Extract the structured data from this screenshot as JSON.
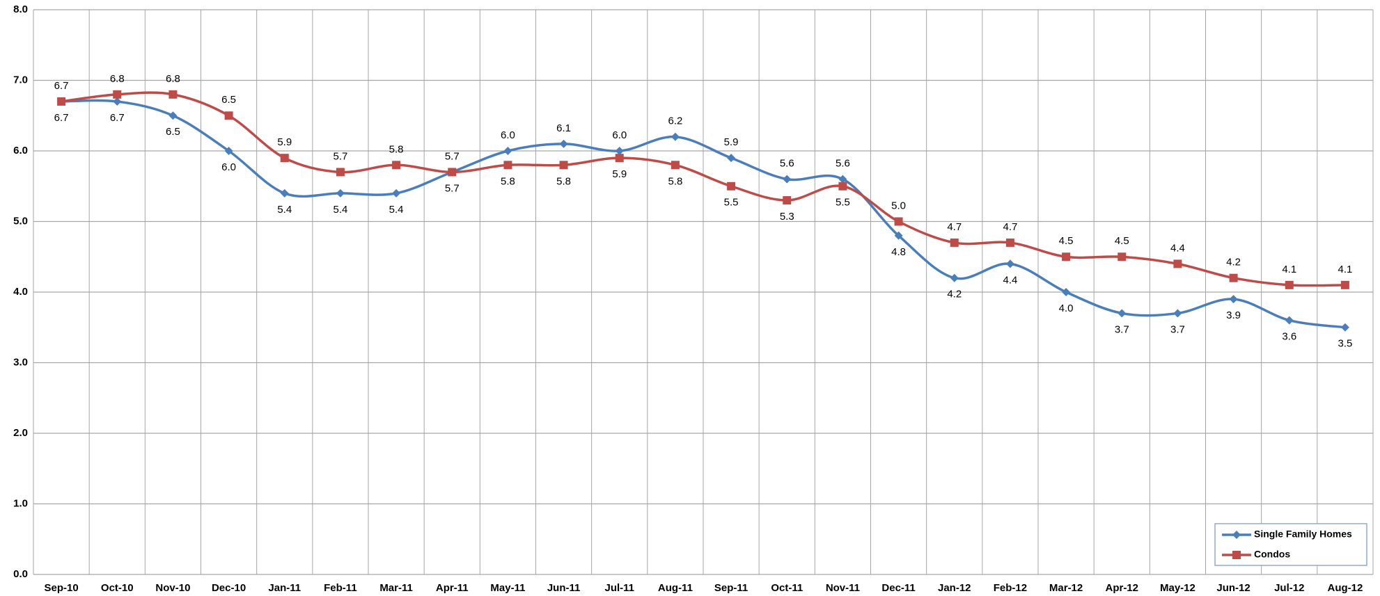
{
  "chart_data": {
    "type": "line",
    "categories": [
      "Sep-10",
      "Oct-10",
      "Nov-10",
      "Dec-10",
      "Jan-11",
      "Feb-11",
      "Mar-11",
      "Apr-11",
      "May-11",
      "Jun-11",
      "Jul-11",
      "Aug-11",
      "Sep-11",
      "Oct-11",
      "Nov-11",
      "Dec-11",
      "Jan-12",
      "Feb-12",
      "Mar-12",
      "Apr-12",
      "May-12",
      "Jun-12",
      "Jul-12",
      "Aug-12"
    ],
    "series": [
      {
        "name": "Single Family Homes",
        "color": "#4a7ebb",
        "marker": "diamond",
        "values": [
          6.7,
          6.7,
          6.5,
          6.0,
          5.4,
          5.4,
          5.4,
          5.7,
          6.0,
          6.1,
          6.0,
          6.2,
          5.9,
          5.6,
          5.6,
          4.8,
          4.2,
          4.4,
          4.0,
          3.7,
          3.7,
          3.9,
          3.6,
          3.5
        ],
        "value_labels": [
          "6.7",
          "6.7",
          "6.5",
          "6.0",
          "5.4",
          "5.4",
          "5.4",
          "5.7",
          "6.0",
          "6.1",
          "6.0",
          "6.2",
          "5.9",
          "5.6",
          "5.6",
          "4.8",
          "4.2",
          "4.4",
          "4.0",
          "3.7",
          "3.7",
          "3.9",
          "3.6",
          "3.5"
        ]
      },
      {
        "name": "Condos",
        "color": "#be4b48",
        "marker": "square",
        "values": [
          6.7,
          6.8,
          6.8,
          6.5,
          5.9,
          5.7,
          5.8,
          5.7,
          5.8,
          5.8,
          5.9,
          5.8,
          5.5,
          5.3,
          5.5,
          5.0,
          4.7,
          4.7,
          4.5,
          4.5,
          4.4,
          4.2,
          4.1,
          4.1
        ],
        "value_labels": [
          "6.7",
          "6.8",
          "6.8",
          "6.5",
          "5.9",
          "5.7",
          "5.8",
          "5.7",
          "5.8",
          "5.8",
          "5.9",
          "5.8",
          "5.5",
          "5.3",
          "5.5",
          "5.0",
          "4.7",
          "4.7",
          "4.5",
          "4.5",
          "4.4",
          "4.2",
          "4.1",
          "4.1"
        ]
      }
    ],
    "ylim": [
      0,
      8
    ],
    "yticks": [
      {
        "value": 0,
        "label": "0.0"
      },
      {
        "value": 1,
        "label": "1.0"
      },
      {
        "value": 2,
        "label": "2.0"
      },
      {
        "value": 3,
        "label": "3.0"
      },
      {
        "value": 4,
        "label": "4.0"
      },
      {
        "value": 5,
        "label": "5.0"
      },
      {
        "value": 6,
        "label": "6.0"
      },
      {
        "value": 7,
        "label": "7.0"
      },
      {
        "value": 8,
        "label": "8.0"
      }
    ],
    "grid": true,
    "legend": "lower right"
  }
}
